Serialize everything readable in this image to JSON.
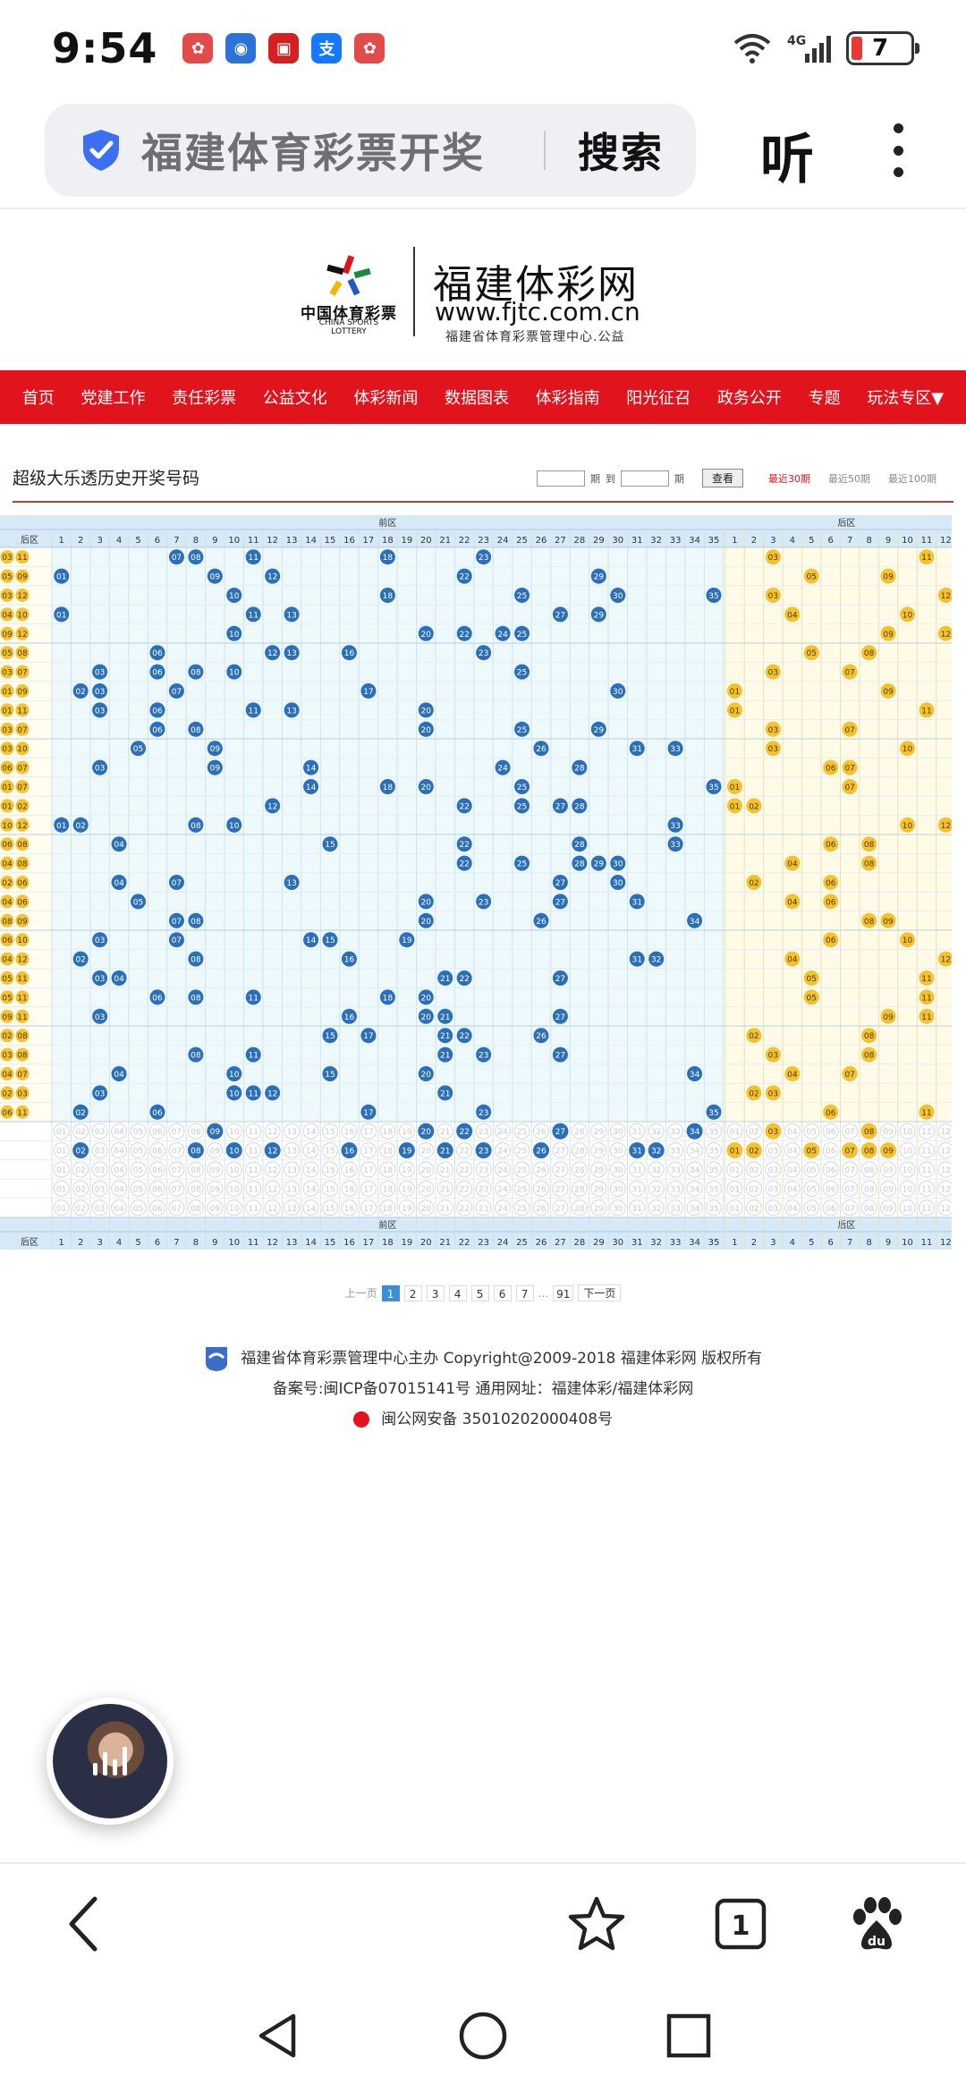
{
  "status_bar": {
    "time": "9:54",
    "notifications": [
      {
        "icon": "huawei-app-icon",
        "color": "#e34a4a"
      },
      {
        "icon": "blue-app-icon",
        "color": "#2a74d9"
      },
      {
        "icon": "red-app-icon",
        "color": "#d42020"
      },
      {
        "icon": "alipay-icon",
        "color": "#1677ff"
      },
      {
        "icon": "huawei-app-icon",
        "color": "#e34a4a"
      }
    ],
    "network": "4G",
    "battery": "7"
  },
  "search": {
    "query": "福建体育彩票开奖",
    "search_label": "搜索",
    "listen_label": "听"
  },
  "site": {
    "logo_cn": "中国体育彩票",
    "logo_en": "CHINA SPORTS LOTTERY",
    "name": "福建体彩网",
    "url": "www.fjtc.com.cn",
    "org": "福建省体育彩票管理中心.公益"
  },
  "nav": [
    "首页",
    "党建工作",
    "责任彩票",
    "公益文化",
    "体彩新闻",
    "数据图表",
    "体彩指南",
    "阳光征召",
    "政务公开",
    "专题",
    "玩法专区▼"
  ],
  "section": {
    "title": "超级大乐透历史开奖号码",
    "filter_qi1": "期",
    "filter_to": "到",
    "filter_qi2": "期",
    "query_btn": "查看",
    "recent30": "最近30期",
    "recent50": "最近50期",
    "recent100": "最近100期"
  },
  "chart_data": {
    "type": "table",
    "header_front": "前区",
    "header_back": "后区",
    "row_label": "后区",
    "front_columns": [
      1,
      2,
      3,
      4,
      5,
      6,
      7,
      8,
      9,
      10,
      11,
      12,
      13,
      14,
      15,
      16,
      17,
      18,
      19,
      20,
      21,
      22,
      23,
      24,
      25,
      26,
      27,
      28,
      29,
      30,
      31,
      32,
      33,
      34,
      35
    ],
    "back_columns": [
      1,
      2,
      3,
      4,
      5,
      6,
      7,
      8,
      9,
      10,
      11,
      12
    ],
    "draws": [
      {
        "front": [
          7,
          8,
          11,
          18,
          23
        ],
        "back": [
          3,
          11
        ]
      },
      {
        "front": [
          1,
          9,
          12,
          22,
          29
        ],
        "back": [
          5,
          9
        ]
      },
      {
        "front": [
          10,
          18,
          25,
          30,
          35
        ],
        "back": [
          3,
          12
        ]
      },
      {
        "front": [
          1,
          11,
          13,
          27,
          29
        ],
        "back": [
          4,
          10
        ]
      },
      {
        "front": [
          10,
          20,
          22,
          24,
          25
        ],
        "back": [
          9,
          12
        ]
      },
      {
        "front": [
          6,
          12,
          13,
          16,
          23
        ],
        "back": [
          5,
          8
        ]
      },
      {
        "front": [
          3,
          6,
          8,
          10,
          25
        ],
        "back": [
          3,
          7
        ]
      },
      {
        "front": [
          2,
          3,
          7,
          17,
          30
        ],
        "back": [
          1,
          9
        ]
      },
      {
        "front": [
          3,
          6,
          11,
          13,
          20
        ],
        "back": [
          1,
          11
        ]
      },
      {
        "front": [
          6,
          8,
          20,
          25,
          29
        ],
        "back": [
          3,
          7
        ]
      },
      {
        "front": [
          5,
          9,
          26,
          31,
          33
        ],
        "back": [
          3,
          10
        ]
      },
      {
        "front": [
          3,
          9,
          14,
          24,
          28
        ],
        "back": [
          6,
          7
        ]
      },
      {
        "front": [
          14,
          18,
          20,
          25,
          35
        ],
        "back": [
          1,
          7
        ]
      },
      {
        "front": [
          12,
          22,
          25,
          27,
          28
        ],
        "back": [
          1,
          2
        ]
      },
      {
        "front": [
          1,
          2,
          8,
          10,
          33
        ],
        "back": [
          10,
          12
        ]
      },
      {
        "front": [
          4,
          15,
          22,
          28,
          33
        ],
        "back": [
          6,
          8
        ]
      },
      {
        "front": [
          22,
          25,
          28,
          29,
          30
        ],
        "back": [
          4,
          8
        ]
      },
      {
        "front": [
          4,
          7,
          13,
          27,
          30
        ],
        "back": [
          2,
          6
        ]
      },
      {
        "front": [
          5,
          20,
          23,
          27,
          31
        ],
        "back": [
          4,
          6
        ]
      },
      {
        "front": [
          7,
          8,
          20,
          26,
          34
        ],
        "back": [
          8,
          9
        ]
      },
      {
        "front": [
          3,
          7,
          14,
          15,
          19
        ],
        "back": [
          6,
          10
        ]
      },
      {
        "front": [
          2,
          8,
          16,
          31,
          32
        ],
        "back": [
          4,
          12
        ]
      },
      {
        "front": [
          3,
          4,
          21,
          22,
          27
        ],
        "back": [
          5,
          11
        ]
      },
      {
        "front": [
          6,
          8,
          11,
          18,
          20
        ],
        "back": [
          5,
          11
        ]
      },
      {
        "front": [
          3,
          16,
          20,
          21,
          27
        ],
        "back": [
          9,
          11
        ]
      },
      {
        "front": [
          15,
          17,
          21,
          22,
          26
        ],
        "back": [
          2,
          8
        ]
      },
      {
        "front": [
          8,
          11,
          21,
          23,
          27
        ],
        "back": [
          3,
          8
        ]
      },
      {
        "front": [
          4,
          10,
          15,
          20,
          34
        ],
        "back": [
          4,
          7
        ]
      },
      {
        "front": [
          3,
          10,
          11,
          12,
          21
        ],
        "back": [
          2,
          3
        ]
      },
      {
        "front": [
          2,
          6,
          17,
          23,
          35
        ],
        "back": [
          6,
          11
        ]
      }
    ],
    "stat_rows": [
      {
        "front": [
          9,
          20,
          22,
          27,
          34
        ],
        "back": [
          3,
          8
        ]
      },
      {
        "front": [
          2,
          8,
          10,
          12,
          16,
          19,
          21,
          23,
          26,
          31,
          32
        ],
        "back": [
          1,
          2,
          5,
          7,
          8,
          9
        ]
      },
      {
        "front": [],
        "back": []
      },
      {
        "front": [],
        "back": []
      },
      {
        "front": [],
        "back": []
      }
    ]
  },
  "pager": {
    "prev": "上一页",
    "pages": [
      "1",
      "2",
      "3",
      "4",
      "5",
      "6",
      "7"
    ],
    "ellipsis": "...",
    "last": "91",
    "next": "下一页"
  },
  "footer": {
    "line1": "福建省体育彩票管理中心主办 Copyright@2009-2018 福建体彩网 版权所有",
    "line2": "备案号:闽ICP备07015141号   通用网址：福建体彩/福建体彩网",
    "line3": "闽公网安备 35010202000408号"
  }
}
